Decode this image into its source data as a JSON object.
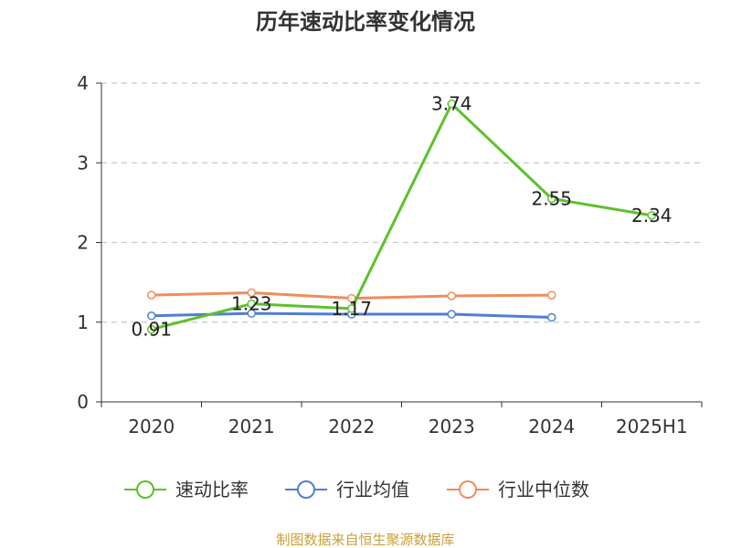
{
  "chart_data": {
    "type": "line",
    "title": "历年速动比率变化情况",
    "xlabel": "",
    "ylabel": "",
    "categories": [
      "2020",
      "2021",
      "2022",
      "2023",
      "2024",
      "2025H1"
    ],
    "ylim": [
      0,
      4
    ],
    "yticks": [
      "0",
      "1",
      "2",
      "3",
      "4"
    ],
    "grid": true,
    "legend_position": "bottom",
    "series": [
      {
        "name": "速动比率",
        "color": "#5cc12b",
        "values": [
          0.91,
          1.23,
          1.17,
          3.74,
          2.55,
          2.34
        ],
        "labels": [
          "0.91",
          "1.23",
          "1.17",
          "3.74",
          "2.55",
          "2.34"
        ]
      },
      {
        "name": "行业均值",
        "color": "#4e7fd6",
        "values": [
          1.08,
          1.11,
          1.1,
          1.1,
          1.06,
          null
        ]
      },
      {
        "name": "行业中位数",
        "color": "#f08c5a",
        "values": [
          1.34,
          1.37,
          1.3,
          1.33,
          1.34,
          null
        ]
      }
    ]
  },
  "footer": "制图数据来自恒生聚源数据库"
}
